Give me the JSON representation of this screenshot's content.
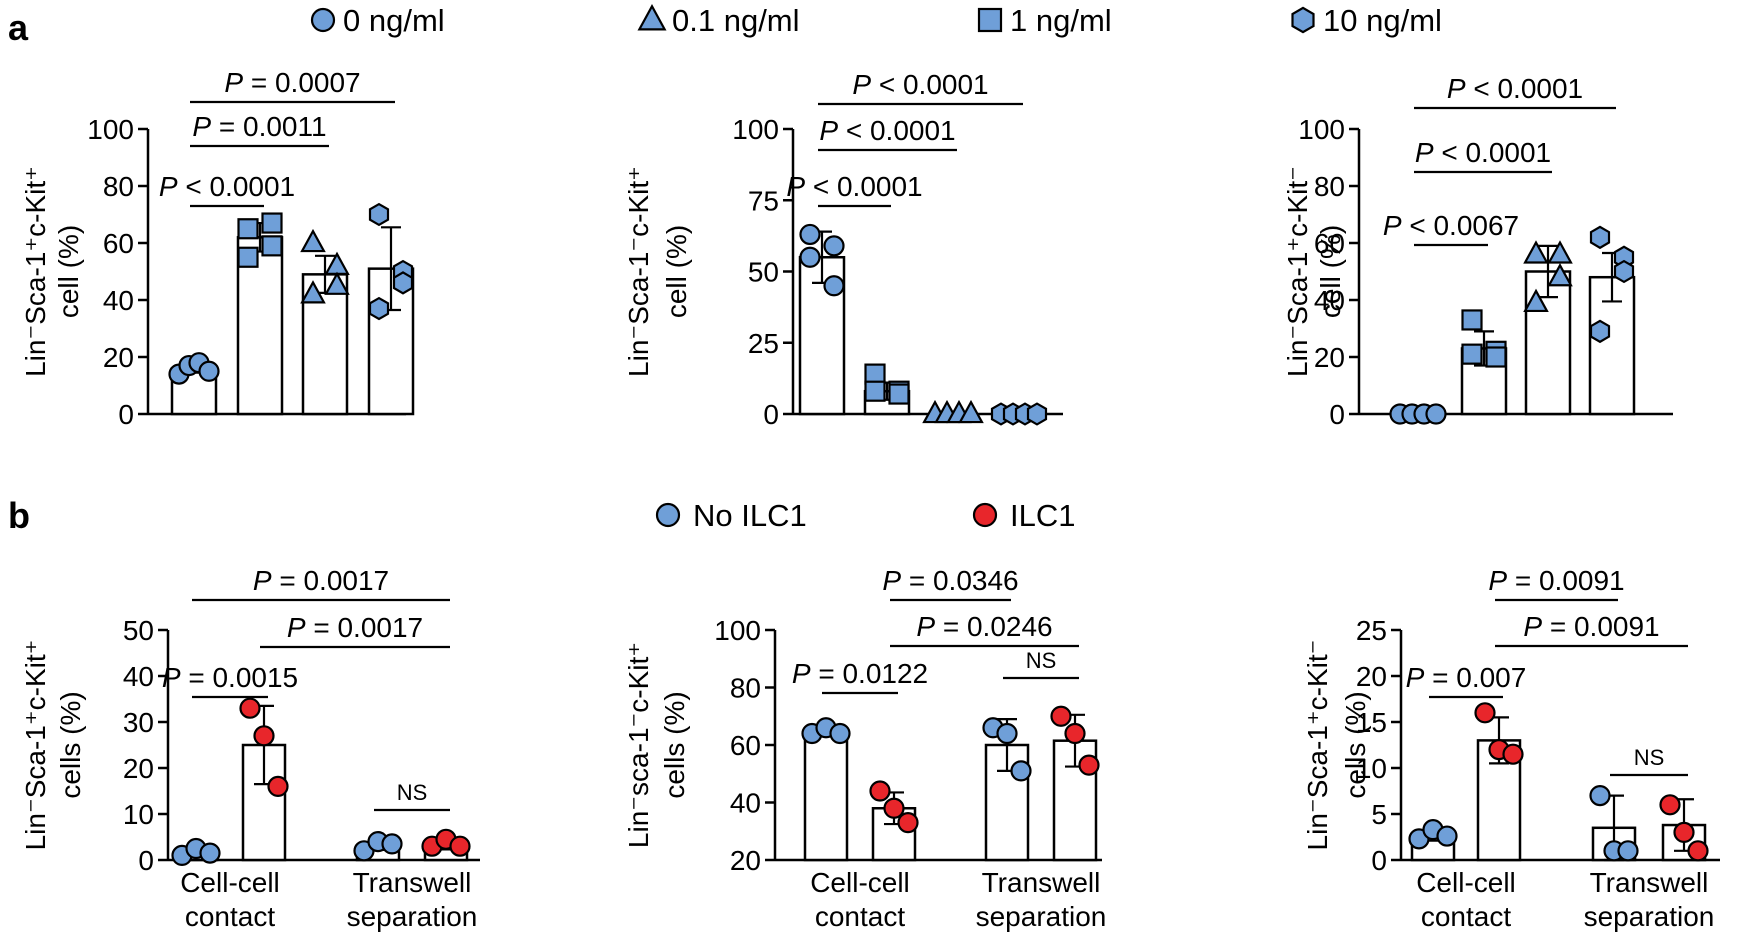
{
  "figure": {
    "panel_a_label": "a",
    "panel_b_label": "b",
    "legend_a": [
      {
        "label": "0 ng/ml",
        "marker": "circle"
      },
      {
        "label": "0.1 ng/ml",
        "marker": "triangle"
      },
      {
        "label": "1 ng/ml",
        "marker": "square"
      },
      {
        "label": "10 ng/ml",
        "marker": "hexagon"
      }
    ],
    "legend_b": [
      {
        "label": "No ILC1",
        "color": "#6f9fd8"
      },
      {
        "label": "ILC1",
        "color": "#e8262b"
      }
    ],
    "colors": {
      "blue": "#6f9fd8",
      "red": "#e8262b"
    }
  },
  "chart_data": [
    {
      "type": "bar",
      "panel": "a",
      "ylabel_line1": "Lin⁻Sca-1⁺c-Kit⁺",
      "ylabel_line2": "cell (%)",
      "ylim": [
        0,
        100
      ],
      "yticks": [
        0,
        20,
        40,
        60,
        80,
        100
      ],
      "bars": [
        {
          "group": "0 ng/ml",
          "marker": "circle",
          "color": "#6f9fd8",
          "mean": 16,
          "sd": 1.5,
          "points": [
            14,
            17,
            18,
            15
          ]
        },
        {
          "group": "1 ng/ml",
          "marker": "square",
          "color": "#6f9fd8",
          "mean": 62,
          "sd": 5,
          "points": [
            65,
            67,
            59,
            55
          ]
        },
        {
          "group": "0.1 ng/ml",
          "marker": "triangle",
          "color": "#6f9fd8",
          "mean": 49,
          "sd": 6.5,
          "points": [
            60,
            52,
            45,
            42
          ]
        },
        {
          "group": "10 ng/ml",
          "marker": "hexagon",
          "color": "#6f9fd8",
          "mean": 51,
          "sd": 14.5,
          "points": [
            70,
            50,
            46,
            37
          ]
        }
      ],
      "comparisons": [
        {
          "text": "P < 0.0001",
          "from": 0,
          "to": 1
        },
        {
          "text": "P = 0.0011",
          "from": 0,
          "to": 2
        },
        {
          "text": "P = 0.0007",
          "from": 0,
          "to": 3
        }
      ]
    },
    {
      "type": "bar",
      "panel": "a",
      "ylabel_line1": "Lin⁻Sca-1⁻c-Kit⁺",
      "ylabel_line2": "cell (%)",
      "ylim": [
        0,
        100
      ],
      "yticks": [
        0,
        25,
        50,
        75,
        100
      ],
      "bars": [
        {
          "group": "0 ng/ml",
          "marker": "circle",
          "color": "#6f9fd8",
          "mean": 55,
          "sd": 9,
          "points": [
            63,
            59,
            45,
            55
          ]
        },
        {
          "group": "1 ng/ml",
          "marker": "square",
          "color": "#6f9fd8",
          "mean": 8,
          "sd": 3,
          "points": [
            14,
            8,
            7,
            8
          ]
        },
        {
          "group": "0.1 ng/ml",
          "marker": "triangle",
          "color": "#6f9fd8",
          "mean": 0.3,
          "sd": 0,
          "points": [
            0,
            0,
            0,
            0
          ]
        },
        {
          "group": "10 ng/ml",
          "marker": "hexagon",
          "color": "#6f9fd8",
          "mean": 0.3,
          "sd": 0,
          "points": [
            0,
            0,
            0,
            0
          ]
        }
      ],
      "comparisons": [
        {
          "text": "P < 0.0001",
          "from": 0,
          "to": 1
        },
        {
          "text": "P < 0.0001",
          "from": 0,
          "to": 2
        },
        {
          "text": "P < 0.0001",
          "from": 0,
          "to": 3
        }
      ]
    },
    {
      "type": "bar",
      "panel": "a",
      "ylabel_line1": "Lin⁻Sca-1⁺c-Kit⁻",
      "ylabel_line2": "cell (%)",
      "ylim": [
        0,
        100
      ],
      "yticks": [
        0,
        20,
        40,
        60,
        80,
        100
      ],
      "bars": [
        {
          "group": "0 ng/ml",
          "marker": "circle",
          "color": "#6f9fd8",
          "mean": 0.3,
          "sd": 0,
          "points": [
            0,
            0,
            0,
            0
          ]
        },
        {
          "group": "1 ng/ml",
          "marker": "square",
          "color": "#6f9fd8",
          "mean": 23,
          "sd": 6,
          "points": [
            33,
            22,
            20,
            21
          ]
        },
        {
          "group": "0.1 ng/ml",
          "marker": "triangle",
          "color": "#6f9fd8",
          "mean": 50,
          "sd": 9,
          "points": [
            56,
            56,
            48,
            39
          ]
        },
        {
          "group": "10 ng/ml",
          "marker": "hexagon",
          "color": "#6f9fd8",
          "mean": 48,
          "sd": 8.5,
          "points": [
            62,
            55,
            50,
            29
          ]
        }
      ],
      "comparisons": [
        {
          "text": "P < 0.0067",
          "from": 0,
          "to": 1
        },
        {
          "text": "P < 0.0001",
          "from": 0,
          "to": 2
        },
        {
          "text": "P < 0.0001",
          "from": 0,
          "to": 3
        }
      ]
    },
    {
      "type": "bar",
      "panel": "b",
      "ylabel_line1": "Lin⁻Sca-1⁺c-Kit⁺",
      "ylabel_line2": "cells (%)",
      "ylim": [
        0,
        50
      ],
      "yticks": [
        0,
        10,
        20,
        30,
        40,
        50
      ],
      "categories": [
        "Cell-cell\ncontact",
        "Transwell\nseparation"
      ],
      "bars": [
        {
          "group": "No ILC1",
          "color": "#6f9fd8",
          "mean": 1.8,
          "sd": 0.8,
          "points": [
            1,
            2.5,
            1.5
          ]
        },
        {
          "group": "ILC1",
          "color": "#e8262b",
          "mean": 25,
          "sd": 8.5,
          "points": [
            33,
            27,
            16
          ]
        },
        {
          "group": "No ILC1",
          "color": "#6f9fd8",
          "mean": 3.2,
          "sd": 1,
          "points": [
            2,
            4,
            3.5
          ]
        },
        {
          "group": "ILC1",
          "color": "#e8262b",
          "mean": 3.5,
          "sd": 1.2,
          "points": [
            3,
            4.5,
            3
          ]
        }
      ],
      "comparisons": [
        {
          "text": "P = 0.0015",
          "from": 0,
          "to": 1
        },
        {
          "text": "P = 0.0017",
          "from": 1,
          "to": 3
        },
        {
          "text": "P = 0.0017",
          "from": 0,
          "to": 3
        },
        {
          "text": "NS",
          "from": 2,
          "to": 3
        }
      ]
    },
    {
      "type": "bar",
      "panel": "b",
      "ylabel_line1": "Lin⁻sca-1⁻c-Kit⁺",
      "ylabel_line2": "cells (%)",
      "ylim": [
        20,
        100
      ],
      "yticks": [
        20,
        40,
        60,
        80,
        100
      ],
      "categories": [
        "Cell-cell\ncontact",
        "Transwell\nseparation"
      ],
      "bars": [
        {
          "group": "No ILC1",
          "color": "#6f9fd8",
          "mean": 64.5,
          "sd": 1,
          "points": [
            64,
            66,
            64
          ]
        },
        {
          "group": "ILC1",
          "color": "#e8262b",
          "mean": 38,
          "sd": 5.5,
          "points": [
            44,
            38,
            33
          ]
        },
        {
          "group": "No ILC1",
          "color": "#6f9fd8",
          "mean": 60,
          "sd": 9,
          "points": [
            66,
            64,
            51
          ]
        },
        {
          "group": "ILC1",
          "color": "#e8262b",
          "mean": 61.5,
          "sd": 9,
          "points": [
            70,
            64,
            53
          ]
        }
      ],
      "comparisons": [
        {
          "text": "P = 0.0122",
          "from": 0,
          "to": 1
        },
        {
          "text": "P = 0.0246",
          "from": 1,
          "to": 3
        },
        {
          "text": "P = 0.0346",
          "from": 1,
          "to": 2
        },
        {
          "text": "NS",
          "from": 2,
          "to": 3
        }
      ]
    },
    {
      "type": "bar",
      "panel": "b",
      "ylabel_line1": "Lin⁻Sca-1⁺c-Kit⁻",
      "ylabel_line2": "cells (%)",
      "ylim": [
        0,
        25
      ],
      "yticks": [
        0,
        5,
        10,
        15,
        20,
        25
      ],
      "categories": [
        "Cell-cell\ncontact",
        "Transwell\nseparation"
      ],
      "bars": [
        {
          "group": "No ILC1",
          "color": "#6f9fd8",
          "mean": 2.7,
          "sd": 0.6,
          "points": [
            2.3,
            3.3,
            2.6
          ]
        },
        {
          "group": "ILC1",
          "color": "#e8262b",
          "mean": 13,
          "sd": 2.5,
          "points": [
            16,
            12,
            11.5
          ]
        },
        {
          "group": "No ILC1",
          "color": "#6f9fd8",
          "mean": 3.5,
          "sd": 3.5,
          "points": [
            7,
            1,
            1
          ]
        },
        {
          "group": "ILC1",
          "color": "#e8262b",
          "mean": 3.8,
          "sd": 2.8,
          "points": [
            6,
            3,
            1
          ]
        }
      ],
      "comparisons": [
        {
          "text": "P = 0.007",
          "from": 0,
          "to": 1
        },
        {
          "text": "P = 0.0091",
          "from": 1,
          "to": 3
        },
        {
          "text": "P = 0.0091",
          "from": 1,
          "to": 2
        },
        {
          "text": "NS",
          "from": 2,
          "to": 3
        }
      ]
    }
  ]
}
